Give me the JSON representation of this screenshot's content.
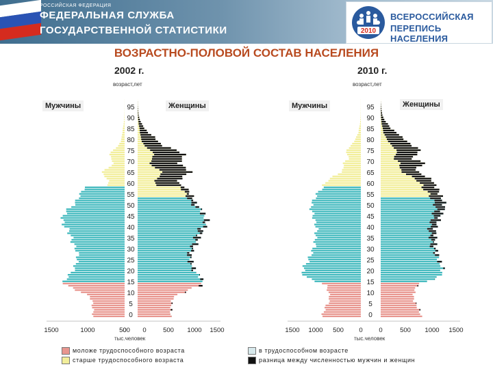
{
  "header": {
    "agency_small": "РОССИЙСКАЯ ФЕДЕРАЦИЯ",
    "agency_line1": "ФЕДЕРАЛЬНАЯ СЛУЖБА",
    "agency_line2": "ГОСУДАРСТВЕННОЙ СТАТИСТИКИ",
    "census_line1": "ВСЕРОССИЙСКАЯ",
    "census_line2": "ПЕРЕПИСЬ НАСЕЛЕНИЯ",
    "census_year": "2010"
  },
  "colors": {
    "young": "#e8968f",
    "working": "#3fb8bd",
    "old": "#f2ee9a",
    "diff": "#111111",
    "title": "#b84a1f"
  },
  "chart_data": {
    "type": "population-pyramid",
    "title": "ВОЗРАСТНО-ПОЛОВОЙ СОСТАВ НАСЕЛЕНИЯ",
    "xlabel": "тыс.человек",
    "ylabel": "возраст,лет",
    "xlim": [
      0,
      1500
    ],
    "x_ticks": [
      1500,
      1000,
      500,
      0,
      500,
      1000,
      1500
    ],
    "age_ticks": [
      0,
      5,
      10,
      15,
      20,
      25,
      30,
      35,
      40,
      45,
      50,
      55,
      60,
      65,
      70,
      75,
      80,
      85,
      90,
      95
    ],
    "male_label": "Мужчины",
    "female_label": "Женщины",
    "age_groups": [
      {
        "name": "young",
        "label": "моложе трудоспособного возраста"
      },
      {
        "name": "working",
        "label": "в трудоспособном возрасте"
      },
      {
        "name": "old",
        "label": "старше трудоспособного возраста"
      },
      {
        "name": "diff",
        "label": "разница между численностью мужчин и женщин"
      }
    ],
    "pyramids": [
      {
        "year_label": "2002 г.",
        "working_age_male": [
          16,
          59
        ],
        "working_age_female": [
          16,
          54
        ],
        "age_points": [
          0,
          3,
          6,
          9,
          11,
          13,
          14,
          15,
          16,
          17,
          18,
          20,
          22,
          25,
          28,
          31,
          34,
          37,
          38,
          40,
          42,
          44,
          46,
          48,
          50,
          52,
          54,
          56,
          58,
          59,
          60,
          62,
          64,
          66,
          68,
          70,
          72,
          74,
          76,
          78,
          80,
          82,
          84,
          86,
          88,
          90,
          92,
          94,
          96,
          98,
          99
        ],
        "male": [
          640,
          650,
          660,
          700,
          900,
          1060,
          1200,
          1250,
          1230,
          1210,
          1180,
          1080,
          1030,
          980,
          950,
          1000,
          1070,
          1100,
          1130,
          1170,
          1250,
          1280,
          1250,
          1200,
          1100,
          1000,
          960,
          900,
          850,
          820,
          340,
          330,
          400,
          480,
          320,
          230,
          270,
          310,
          240,
          130,
          80,
          60,
          45,
          35,
          20,
          10,
          6,
          3,
          2,
          1,
          1
        ],
        "female": [
          620,
          630,
          640,
          680,
          880,
          1040,
          1180,
          1240,
          1220,
          1210,
          1190,
          1100,
          1060,
          1020,
          1000,
          1050,
          1130,
          1170,
          1200,
          1240,
          1300,
          1310,
          1260,
          1230,
          1150,
          1080,
          1050,
          1000,
          940,
          920,
          800,
          770,
          860,
          1000,
          900,
          780,
          840,
          880,
          740,
          480,
          380,
          320,
          200,
          130,
          80,
          40,
          20,
          10,
          5,
          2,
          1
        ]
      },
      {
        "year_label": "2010 г.",
        "working_age_male": [
          16,
          59
        ],
        "working_age_female": [
          16,
          54
        ],
        "age_points": [
          0,
          2,
          4,
          6,
          8,
          10,
          12,
          14,
          15,
          16,
          17,
          18,
          20,
          22,
          24,
          26,
          28,
          30,
          32,
          35,
          38,
          40,
          42,
          45,
          48,
          50,
          52,
          54,
          56,
          58,
          59,
          60,
          62,
          64,
          66,
          68,
          70,
          72,
          74,
          76,
          78,
          80,
          82,
          84,
          86,
          88,
          90,
          92,
          94,
          96,
          98,
          99
        ],
        "male": [
          840,
          820,
          780,
          720,
          680,
          700,
          720,
          760,
          840,
          980,
          1100,
          1220,
          1270,
          1260,
          1200,
          1140,
          1100,
          1060,
          1010,
          1000,
          980,
          960,
          990,
          1030,
          1070,
          1100,
          1060,
          1010,
          960,
          880,
          820,
          820,
          740,
          600,
          430,
          370,
          400,
          260,
          300,
          320,
          220,
          150,
          100,
          55,
          40,
          20,
          10,
          5,
          3,
          2,
          1,
          1
        ],
        "female": [
          800,
          780,
          740,
          690,
          650,
          660,
          680,
          720,
          790,
          920,
          1050,
          1160,
          1220,
          1230,
          1190,
          1160,
          1140,
          1110,
          1080,
          1090,
          1090,
          1080,
          1120,
          1170,
          1230,
          1270,
          1260,
          1220,
          1170,
          1140,
          1110,
          1080,
          1040,
          900,
          740,
          700,
          920,
          620,
          700,
          800,
          640,
          520,
          420,
          320,
          200,
          140,
          70,
          35,
          18,
          8,
          3,
          1
        ]
      }
    ]
  }
}
